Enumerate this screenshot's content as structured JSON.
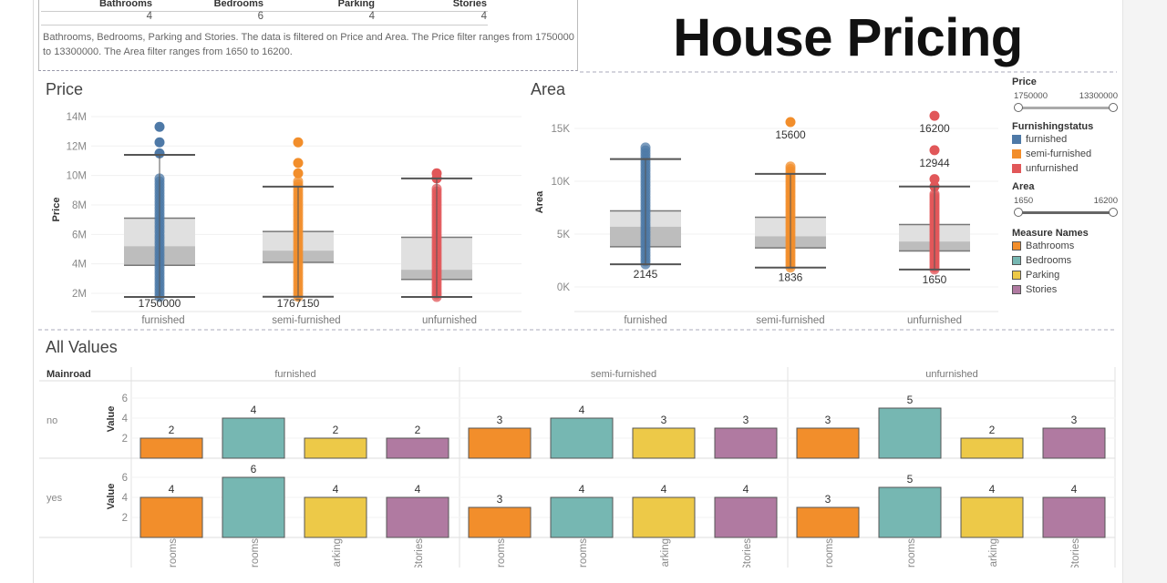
{
  "title": "House Pricing",
  "summary": {
    "headers": [
      "Bathrooms",
      "Bedrooms",
      "Parking",
      "Stories"
    ],
    "values": [
      "4",
      "6",
      "4",
      "4"
    ],
    "description": "Bathrooms, Bedrooms, Parking and Stories. The data is filtered on Price and Area. The Price filter ranges from 1750000 to 13300000. The Area filter ranges from 1650 to 16200."
  },
  "legend": {
    "price": {
      "title": "Price",
      "min": "1750000",
      "max": "13300000"
    },
    "furnishing": {
      "title": "Furnishingstatus",
      "items": [
        {
          "label": "furnished",
          "color": "#4e79a7"
        },
        {
          "label": "semi-furnished",
          "color": "#f28e2b"
        },
        {
          "label": "unfurnished",
          "color": "#e15759"
        }
      ]
    },
    "area": {
      "title": "Area",
      "min": "1650",
      "max": "16200"
    },
    "measures": {
      "title": "Measure Names",
      "items": [
        {
          "label": "Bathrooms",
          "color": "#f28e2b"
        },
        {
          "label": "Bedrooms",
          "color": "#76b7b2"
        },
        {
          "label": "Parking",
          "color": "#edc948"
        },
        {
          "label": "Stories",
          "color": "#b07aa1"
        }
      ]
    }
  },
  "chart_data": [
    {
      "type": "box",
      "title": "Price",
      "ylabel": "Price",
      "yticks": [
        "2M",
        "4M",
        "6M",
        "8M",
        "10M",
        "12M",
        "14M"
      ],
      "ylim": [
        1000000,
        14500000
      ],
      "categories": [
        "furnished",
        "semi-furnished",
        "unfurnished"
      ],
      "colors": [
        "#4e79a7",
        "#f28e2b",
        "#e15759"
      ],
      "boxes": [
        {
          "low": 1750000,
          "q1": 3900000,
          "median": 5200000,
          "q3": 7100000,
          "high": 11400000,
          "points_range": [
            1750000,
            9800000
          ],
          "outliers": [
            11500000,
            12250000,
            13300000
          ],
          "low_label": "1750000"
        },
        {
          "low": 1767150,
          "q1": 4100000,
          "median": 4900000,
          "q3": 6200000,
          "high": 9240000,
          "points_range": [
            1767150,
            9600000
          ],
          "outliers": [
            10150000,
            10850000,
            12250000
          ],
          "low_label": "1767150"
        },
        {
          "low": 1750000,
          "q1": 2940000,
          "median": 3600000,
          "q3": 5800000,
          "high": 9800000,
          "points_range": [
            1750000,
            9100000
          ],
          "outliers": [
            9800000,
            10150000
          ],
          "low_label": ""
        }
      ]
    },
    {
      "type": "box",
      "title": "Area",
      "ylabel": "Area",
      "yticks": [
        "0K",
        "5K",
        "10K",
        "15K"
      ],
      "ylim": [
        -2000,
        16500
      ],
      "categories": [
        "furnished",
        "semi-furnished",
        "unfurnished"
      ],
      "colors": [
        "#4e79a7",
        "#f28e2b",
        "#e15759"
      ],
      "boxes": [
        {
          "low": 2145,
          "q1": 3800,
          "median": 5700,
          "q3": 7200,
          "high": 12100,
          "points_range": [
            2145,
            13200
          ],
          "outliers": [],
          "low_label": "2145",
          "outlier_labels": []
        },
        {
          "low": 1836,
          "q1": 3700,
          "median": 4800,
          "q3": 6600,
          "high": 10700,
          "points_range": [
            1836,
            11400
          ],
          "outliers": [
            15600
          ],
          "low_label": "1836",
          "outlier_labels": [
            "15600"
          ]
        },
        {
          "low": 1650,
          "q1": 3400,
          "median": 4300,
          "q3": 5900,
          "high": 9500,
          "points_range": [
            1650,
            8800
          ],
          "outliers": [
            9500,
            10200,
            12944,
            16200
          ],
          "low_label": "1650",
          "outlier_labels": [
            "",
            "",
            "12944",
            "16200"
          ]
        }
      ]
    },
    {
      "type": "bar",
      "title": "All Values",
      "row_header": "Mainroad",
      "ylabel": "Value",
      "yticks": [
        "2",
        "4",
        "6"
      ],
      "ylim": [
        0,
        7.5
      ],
      "columns": [
        "furnished",
        "semi-furnished",
        "unfurnished"
      ],
      "rows": [
        "no",
        "yes"
      ],
      "categories": [
        "Bathrooms",
        "Bedrooms",
        "Parking",
        "Stories"
      ],
      "colors": [
        "#f28e2b",
        "#76b7b2",
        "#edc948",
        "#b07aa1"
      ],
      "values": {
        "no": [
          [
            2,
            4,
            2,
            2
          ],
          [
            3,
            4,
            3,
            3
          ],
          [
            3,
            5,
            2,
            3
          ]
        ],
        "yes": [
          [
            4,
            6,
            4,
            4
          ],
          [
            3,
            4,
            4,
            4
          ],
          [
            3,
            5,
            4,
            4
          ]
        ]
      }
    }
  ]
}
